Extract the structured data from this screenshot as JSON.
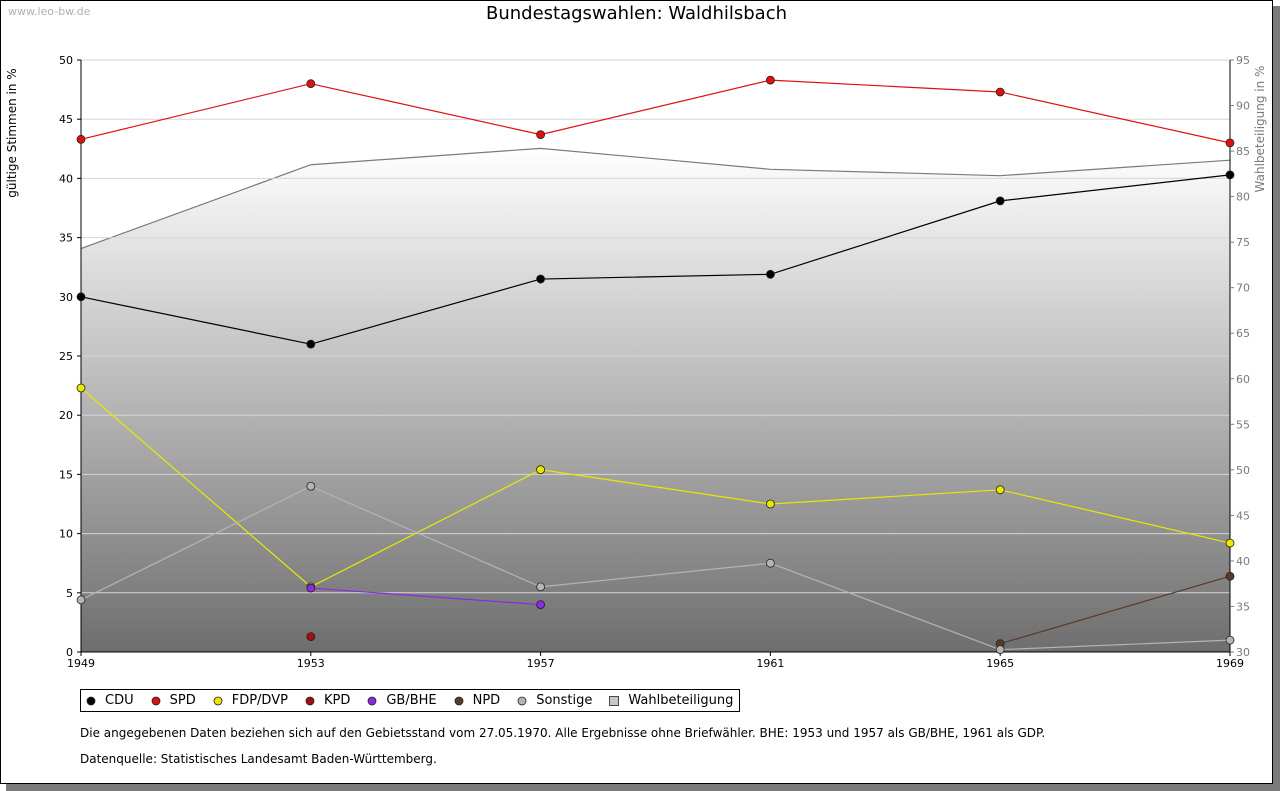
{
  "watermark": "www.leo-bw.de",
  "chart_data": {
    "type": "line",
    "title": "Bundestagswahlen: Waldhilsbach",
    "x": [
      "1949",
      "1953",
      "1957",
      "1961",
      "1965",
      "1969"
    ],
    "ylabel": "gültige Stimmen in %",
    "ylim": [
      0,
      50
    ],
    "yticks": [
      "0",
      "5",
      "10",
      "15",
      "20",
      "25",
      "30",
      "35",
      "40",
      "45",
      "50"
    ],
    "y2label": "Wahlbeteiligung in %",
    "y2lim": [
      30,
      95
    ],
    "y2ticks": [
      "30",
      "35",
      "40",
      "45",
      "50",
      "55",
      "60",
      "65",
      "70",
      "75",
      "80",
      "85",
      "90",
      "95"
    ],
    "grid": true,
    "series": [
      {
        "name": "CDU",
        "color": "#000000",
        "values": [
          30.0,
          26.0,
          31.5,
          31.9,
          38.1,
          40.3
        ]
      },
      {
        "name": "SPD",
        "color": "#dd1111",
        "values": [
          43.3,
          48.0,
          43.7,
          48.3,
          47.3,
          43.0
        ]
      },
      {
        "name": "FDP/DVP",
        "color": "#e8e800",
        "values": [
          22.3,
          5.5,
          15.4,
          12.5,
          13.7,
          9.2
        ]
      },
      {
        "name": "KPD",
        "color": "#a01010",
        "values": [
          null,
          1.3,
          null,
          null,
          null,
          null
        ]
      },
      {
        "name": "GB/BHE",
        "color": "#8a2be2",
        "values": [
          null,
          5.4,
          4.0,
          null,
          null,
          null
        ]
      },
      {
        "name": "NPD",
        "color": "#5a3a2a",
        "values": [
          null,
          null,
          null,
          null,
          0.7,
          6.4
        ]
      },
      {
        "name": "Sonstige",
        "color": "#b4b4b4",
        "values": [
          4.4,
          14.0,
          5.5,
          7.5,
          0.2,
          1.0
        ]
      }
    ],
    "turnout": {
      "name": "Wahlbeteiligung",
      "axis": "right",
      "values": [
        74.3,
        83.5,
        85.3,
        83.0,
        82.3,
        84.0
      ]
    },
    "legend": [
      "CDU",
      "SPD",
      "FDP/DVP",
      "KPD",
      "GB/BHE",
      "NPD",
      "Sonstige",
      "Wahlbeteiligung"
    ]
  },
  "notes": {
    "line1": "Die angegebenen Daten beziehen sich auf den Gebietsstand vom 27.05.1970. Alle Ergebnisse ohne Briefwähler. BHE: 1953 und 1957 als GB/BHE, 1961 als GDP.",
    "line2": "Datenquelle: Statistisches Landesamt Baden-Württemberg."
  }
}
